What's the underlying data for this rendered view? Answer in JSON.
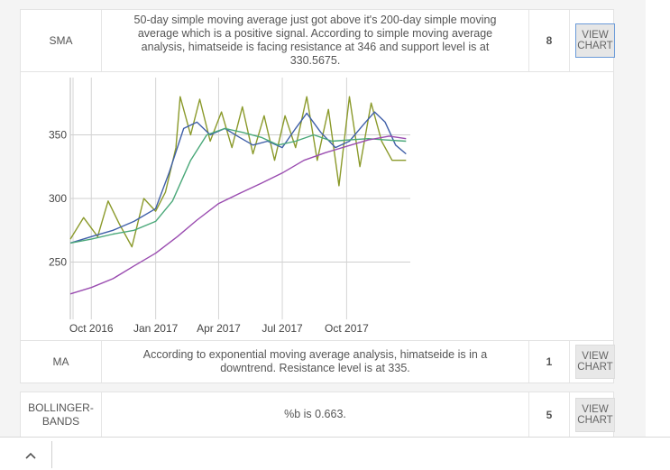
{
  "rows": [
    {
      "name": "SMA",
      "description": "50-day simple moving average just got above it's 200-day simple moving average which is a positive signal. According to simple moving average analysis, himatseide is facing resistance at 346 and support level is at 330.5675.",
      "score": "8",
      "button": "VIEW CHART"
    },
    {
      "name": "MA",
      "description": "According to exponential moving average analysis, himatseide is in a downtrend. Resistance level is at 335.",
      "score": "1",
      "button": "VIEW CHART"
    },
    {
      "name": "BOLLINGER-BANDS",
      "description": "%b is 0.663.",
      "score": "5",
      "button": "VIEW CHART"
    }
  ],
  "chart_data": {
    "type": "line",
    "x_ticks": [
      "Oct 2016",
      "Jan 2017",
      "Apr 2017",
      "Jul 2017",
      "Oct 2017"
    ],
    "y_ticks": [
      250,
      300,
      350
    ],
    "ylim": [
      205,
      395
    ],
    "xlim": [
      "2016-09-01",
      "2017-12-31"
    ],
    "series": [
      {
        "color": "#8b9a2b",
        "x": [
          "2016-09-01",
          "2016-09-20",
          "2016-10-10",
          "2016-10-25",
          "2016-11-10",
          "2016-11-28",
          "2016-12-15",
          "2017-01-01",
          "2017-01-15",
          "2017-01-30",
          "2017-02-05",
          "2017-02-20",
          "2017-03-05",
          "2017-03-20",
          "2017-04-05",
          "2017-04-20",
          "2017-05-05",
          "2017-05-20",
          "2017-06-05",
          "2017-06-20",
          "2017-07-05",
          "2017-07-20",
          "2017-08-05",
          "2017-08-20",
          "2017-09-05",
          "2017-09-20",
          "2017-10-05",
          "2017-10-20",
          "2017-11-05",
          "2017-11-20",
          "2017-12-05",
          "2017-12-25"
        ],
        "y": [
          268,
          285,
          270,
          298,
          280,
          262,
          300,
          290,
          305,
          340,
          380,
          350,
          378,
          345,
          368,
          340,
          372,
          335,
          365,
          330,
          365,
          340,
          380,
          330,
          370,
          310,
          380,
          325,
          375,
          345,
          330,
          330
        ]
      },
      {
        "color": "#3f5fa8",
        "x": [
          "2016-09-01",
          "2016-10-01",
          "2016-11-01",
          "2016-12-01",
          "2017-01-01",
          "2017-01-20",
          "2017-02-10",
          "2017-03-01",
          "2017-03-20",
          "2017-04-10",
          "2017-05-01",
          "2017-05-20",
          "2017-06-10",
          "2017-07-01",
          "2017-07-20",
          "2017-08-05",
          "2017-08-25",
          "2017-09-15",
          "2017-10-05",
          "2017-10-25",
          "2017-11-10",
          "2017-11-25",
          "2017-12-10",
          "2017-12-25"
        ],
        "y": [
          265,
          270,
          275,
          282,
          292,
          320,
          355,
          360,
          350,
          355,
          348,
          342,
          345,
          340,
          355,
          367,
          352,
          340,
          345,
          358,
          368,
          360,
          342,
          335
        ]
      },
      {
        "color": "#4aa879",
        "x": [
          "2016-09-01",
          "2016-10-01",
          "2016-11-01",
          "2016-12-01",
          "2017-01-01",
          "2017-01-25",
          "2017-02-20",
          "2017-03-15",
          "2017-04-10",
          "2017-05-05",
          "2017-06-01",
          "2017-06-25",
          "2017-07-20",
          "2017-08-15",
          "2017-09-10",
          "2017-10-05",
          "2017-11-01",
          "2017-11-25",
          "2017-12-25"
        ],
        "y": [
          265,
          268,
          272,
          275,
          282,
          298,
          330,
          350,
          355,
          352,
          348,
          342,
          345,
          350,
          345,
          346,
          347,
          346,
          345
        ]
      },
      {
        "color": "#9a4cb0",
        "x": [
          "2016-09-01",
          "2016-10-01",
          "2016-11-01",
          "2016-12-01",
          "2017-01-01",
          "2017-02-01",
          "2017-03-01",
          "2017-04-01",
          "2017-05-01",
          "2017-06-01",
          "2017-07-01",
          "2017-08-01",
          "2017-09-01",
          "2017-10-01",
          "2017-11-01",
          "2017-12-01",
          "2017-12-25"
        ],
        "y": [
          225,
          230,
          237,
          247,
          257,
          270,
          283,
          296,
          304,
          312,
          320,
          330,
          336,
          341,
          346,
          349,
          347
        ]
      }
    ]
  }
}
